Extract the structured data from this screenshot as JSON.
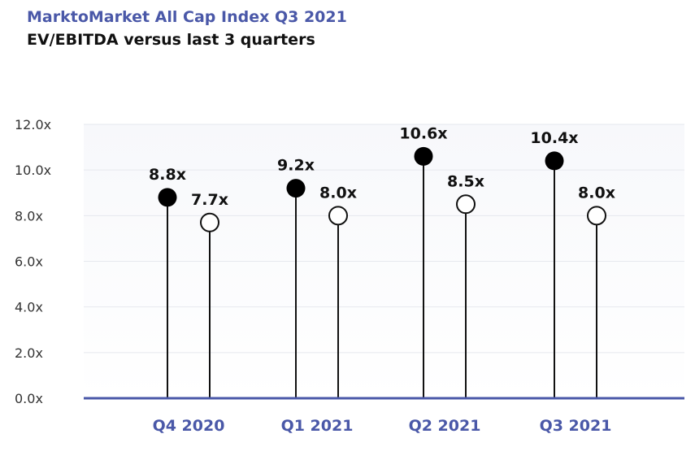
{
  "chart_data": {
    "type": "lollipop",
    "title": "MarktoMarket All Cap Index Q3 2021",
    "subtitle": "EV/EBITDA versus last 3 quarters",
    "categories": [
      "Q4 2020",
      "Q1 2021",
      "Q2 2021",
      "Q3 2021"
    ],
    "series": [
      {
        "values": [
          8.8,
          9.2,
          10.6,
          10.4
        ],
        "labels": [
          "8.8x",
          "9.2x",
          "10.6x",
          "10.4x"
        ],
        "marker": "filled",
        "color": "#000000"
      },
      {
        "values": [
          7.7,
          8.0,
          8.5,
          8.0
        ],
        "labels": [
          "7.7x",
          "8.0x",
          "8.5x",
          "8.0x"
        ],
        "marker": "hollow",
        "color": "#000000"
      }
    ],
    "y_ticks": [
      "0.0x",
      "2.0x",
      "4.0x",
      "6.0x",
      "8.0x",
      "10.0x",
      "12.0x"
    ],
    "ylim": [
      0,
      12
    ],
    "grid": true,
    "colors": {
      "accent": "#4a58a8",
      "grid": "#e6e8ee",
      "plot_bg_top": "#f7f8fb"
    }
  }
}
